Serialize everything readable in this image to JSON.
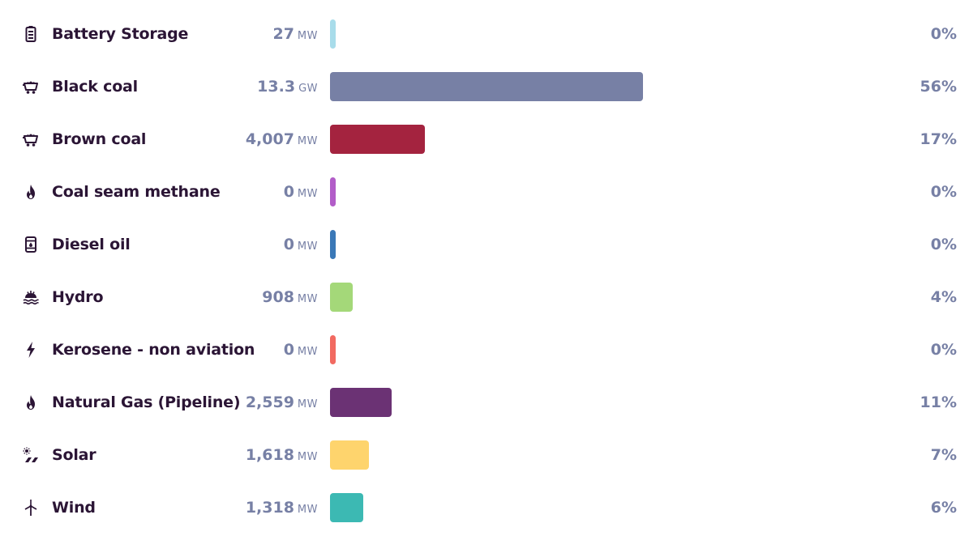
{
  "bar_max_percent": 100,
  "rows": [
    {
      "name": "Battery Storage",
      "value": "27",
      "unit": "MW",
      "percent_label": "0%",
      "share": 0.0,
      "color": "#a8dcea",
      "icon": "battery-icon"
    },
    {
      "name": "Black coal",
      "value": "13.3",
      "unit": "GW",
      "percent_label": "56%",
      "share": 56,
      "color": "#7780a5",
      "icon": "coal-cart-icon"
    },
    {
      "name": "Brown coal",
      "value": "4,007",
      "unit": "MW",
      "percent_label": "17%",
      "share": 17,
      "color": "#a4233f",
      "icon": "coal-cart-icon"
    },
    {
      "name": "Coal seam methane",
      "value": "0",
      "unit": "MW",
      "percent_label": "0%",
      "share": 0.0,
      "color": "#b25dc8",
      "icon": "flame-icon"
    },
    {
      "name": "Diesel oil",
      "value": "0",
      "unit": "MW",
      "percent_label": "0%",
      "share": 0.0,
      "color": "#3a78b7",
      "icon": "oil-barrel-icon"
    },
    {
      "name": "Hydro",
      "value": "908",
      "unit": "MW",
      "percent_label": "4%",
      "share": 4,
      "color": "#a4d879",
      "icon": "hydro-icon"
    },
    {
      "name": "Kerosene - non aviation",
      "value": "0",
      "unit": "MW",
      "percent_label": "0%",
      "share": 0.0,
      "color": "#f26a61",
      "icon": "lightning-icon"
    },
    {
      "name": "Natural Gas (Pipeline)",
      "value": "2,559",
      "unit": "MW",
      "percent_label": "11%",
      "share": 11,
      "color": "#6b3274",
      "icon": "flame-icon"
    },
    {
      "name": "Solar",
      "value": "1,618",
      "unit": "MW",
      "percent_label": "7%",
      "share": 7,
      "color": "#fed46d",
      "icon": "solar-icon"
    },
    {
      "name": "Wind",
      "value": "1,318",
      "unit": "MW",
      "percent_label": "6%",
      "share": 6,
      "color": "#3cb9b3",
      "icon": "wind-turbine-icon"
    }
  ]
}
